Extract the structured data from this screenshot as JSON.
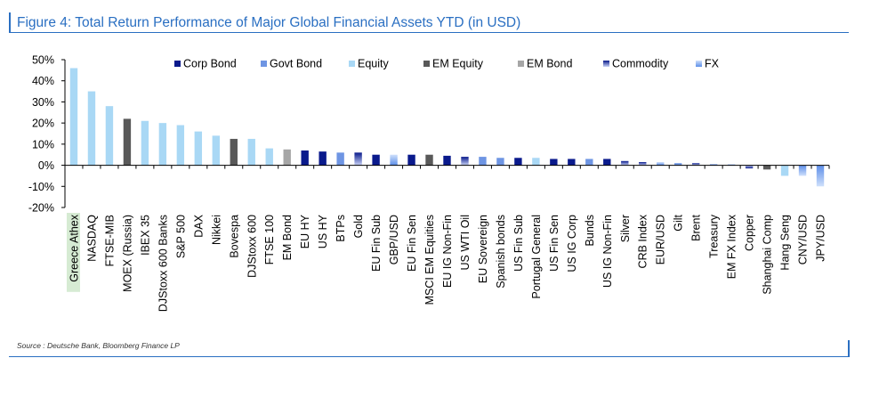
{
  "title": "Figure 4: Total Return Performance of Major Global Financial Assets YTD (in USD)",
  "source": "Source : Deutsche Bank, Bloomberg Finance LP",
  "colors": {
    "Corp Bond": "#0a1a8c",
    "Govt Bond": "#6e95e3",
    "Equity": "#a9d8f5",
    "EM Equity": "#595959",
    "EM Bond": "#a6a6a6",
    "Commodity": "#1a2a9e",
    "FX": "#7fa8ef",
    "accent": "#2a6fc2",
    "highlight": "#d6ebd3"
  },
  "chart_data": {
    "type": "bar",
    "title": "",
    "xlabel": "",
    "ylabel": "",
    "ylim": [
      -20,
      50
    ],
    "yticks": [
      "-20%",
      "-10%",
      "0%",
      "10%",
      "20%",
      "30%",
      "40%",
      "50%"
    ],
    "legend_position": "top",
    "legend": [
      "Corp Bond",
      "Govt Bond",
      "Equity",
      "EM Equity",
      "EM Bond",
      "Commodity",
      "FX"
    ],
    "highlighted_category": "Greece Athex",
    "categories": [
      "Greece Athex",
      "NASDAQ",
      "FTSE-MIB",
      "MOEX (Russia)",
      "IBEX 35",
      "DJStoxx 600 Banks",
      "S&P 500",
      "DAX",
      "Nikkei",
      "Bovespa",
      "DJStoxx 600",
      "FTSE 100",
      "EM Bond",
      "EU HY",
      "US HY",
      "BTPs",
      "Gold",
      "EU Fin Sub",
      "GBP/USD",
      "EU Fin Sen",
      "MSCI EM Equities",
      "EU IG Non-Fin",
      "US WTI Oil",
      "EU Sovereign",
      "Spanish bonds",
      "US Fin Sub",
      "Portugal General",
      "US Fin Sen",
      "US IG Corp",
      "Bunds",
      "US IG Non-Fin",
      "Silver",
      "CRB Index",
      "EUR/USD",
      "Gilt",
      "Brent",
      "Treasury",
      "EM FX Index",
      "Copper",
      "Shanghai Comp",
      "Hang Seng",
      "CNY/USD",
      "JPY/USD"
    ],
    "values": [
      46,
      35,
      28,
      22,
      21,
      20,
      19,
      16,
      14,
      12.5,
      12.5,
      8,
      7.5,
      7,
      6.5,
      6,
      6,
      5,
      5,
      5,
      5,
      4.5,
      4,
      4,
      3.5,
      3.5,
      3.5,
      3,
      3,
      3,
      3,
      2,
      1.5,
      1.5,
      1,
      1,
      0.5,
      0.5,
      -1.5,
      -2,
      -5,
      -5,
      -10
    ],
    "classes": [
      "Equity",
      "Equity",
      "Equity",
      "EM Equity",
      "Equity",
      "Equity",
      "Equity",
      "Equity",
      "Equity",
      "EM Equity",
      "Equity",
      "Equity",
      "EM Bond",
      "Corp Bond",
      "Corp Bond",
      "Govt Bond",
      "Commodity",
      "Corp Bond",
      "FX",
      "Corp Bond",
      "EM Equity",
      "Corp Bond",
      "Commodity",
      "Govt Bond",
      "Govt Bond",
      "Corp Bond",
      "Equity",
      "Corp Bond",
      "Corp Bond",
      "Govt Bond",
      "Corp Bond",
      "Commodity",
      "Commodity",
      "FX",
      "Govt Bond",
      "Commodity",
      "Govt Bond",
      "FX",
      "Commodity",
      "EM Equity",
      "Equity",
      "FX",
      "FX"
    ]
  }
}
